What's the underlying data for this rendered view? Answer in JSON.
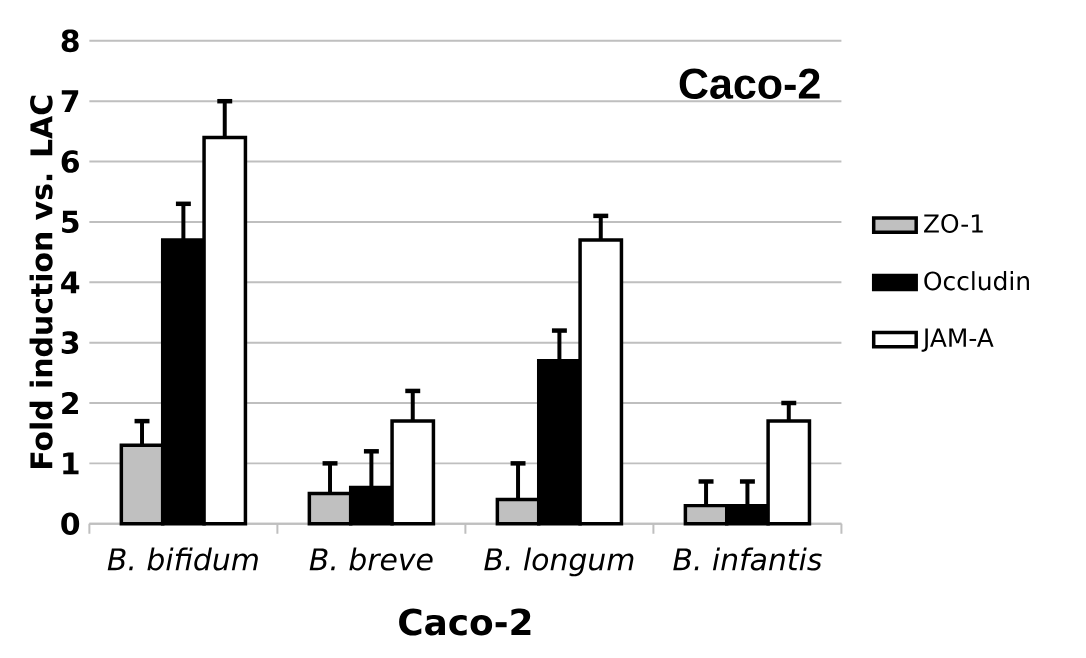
{
  "chart_data": {
    "type": "bar",
    "title": "Caco-2",
    "xlabel": "Caco-2",
    "ylabel": "Fold induction vs. LAC",
    "categories": [
      "B. bifidum",
      "B. breve",
      "B. longum",
      "B. infantis"
    ],
    "series": [
      {
        "name": "ZO-1",
        "color": "#c0c0c0",
        "values": [
          1.3,
          0.5,
          0.4,
          0.3
        ],
        "errors": [
          [
            1.3,
            1.7
          ],
          [
            0.5,
            1.0
          ],
          [
            0.4,
            1.0
          ],
          [
            0.3,
            0.7
          ]
        ]
      },
      {
        "name": "Occludin",
        "color": "#000000",
        "values": [
          4.7,
          0.6,
          2.7,
          0.3
        ],
        "errors": [
          [
            4.7,
            5.3
          ],
          [
            0.6,
            1.2
          ],
          [
            2.7,
            3.2
          ],
          [
            0.3,
            0.7
          ]
        ]
      },
      {
        "name": "JAM-A",
        "color": "#ffffff",
        "values": [
          6.4,
          1.7,
          4.7,
          1.7
        ],
        "errors": [
          [
            6.4,
            7.0
          ],
          [
            1.7,
            2.2
          ],
          [
            4.7,
            5.1
          ],
          [
            1.7,
            2.0
          ]
        ]
      }
    ],
    "ylim": [
      0,
      8
    ],
    "yticks": [
      0,
      1,
      2,
      3,
      4,
      5,
      6,
      7,
      8
    ],
    "grid": "y",
    "legend": "right"
  }
}
